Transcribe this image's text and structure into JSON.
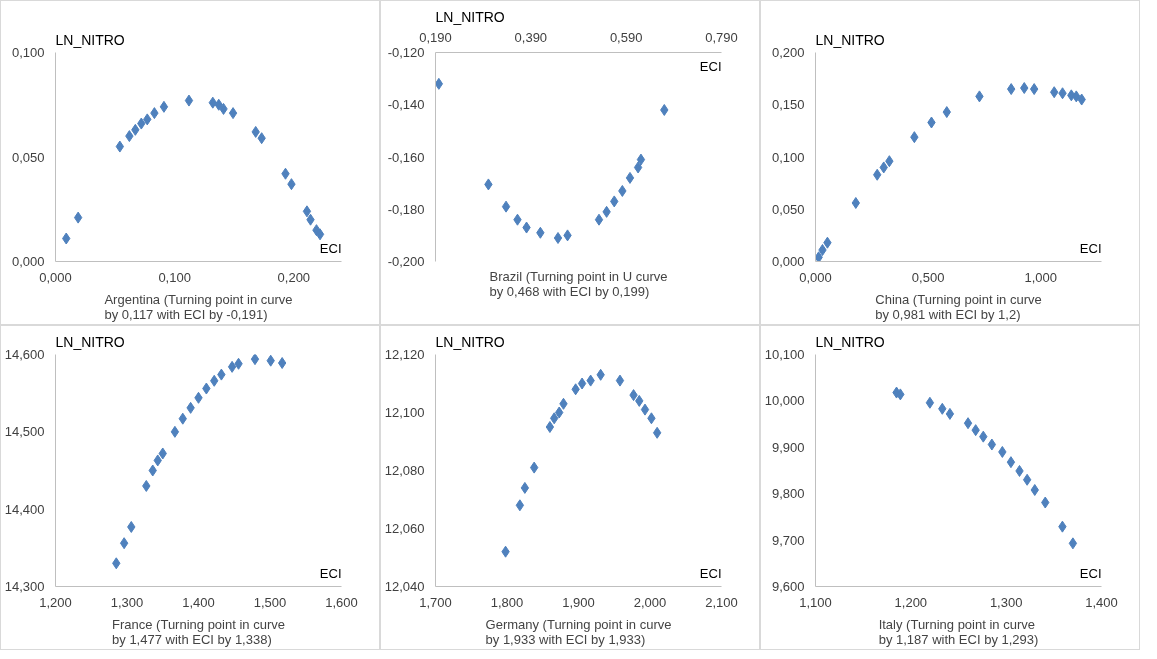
{
  "chart_data": [
    {
      "type": "scatter",
      "marker": "diamond",
      "grid": false,
      "ylabel": "LN_NITRO",
      "xlabel": "ECI",
      "annotations": [
        "Argentina (Turning point in curve by 0,117 with ECI by -0,191)"
      ],
      "xlim": [
        0,
        0.24
      ],
      "ylim": [
        0,
        0.1
      ],
      "xticks": [
        {
          "value": 0,
          "label": "0,000"
        },
        {
          "value": 0.1,
          "label": "0,100"
        },
        {
          "value": 0.2,
          "label": "0,200"
        }
      ],
      "yticks": [
        {
          "value": 0,
          "label": "0,000"
        },
        {
          "value": 0.05,
          "label": "0,050"
        },
        {
          "value": 0.1,
          "label": "0,100"
        }
      ],
      "series": [
        {
          "color": "#4f81bd",
          "x": [
            0.009,
            0.019,
            0.054,
            0.062,
            0.067,
            0.072,
            0.077,
            0.083,
            0.091,
            0.112,
            0.132,
            0.137,
            0.141,
            0.149,
            0.168,
            0.173,
            0.193,
            0.198,
            0.211,
            0.214,
            0.219,
            0.222
          ],
          "values": [
            0.011,
            0.021,
            0.055,
            0.06,
            0.063,
            0.066,
            0.068,
            0.071,
            0.074,
            0.077,
            0.076,
            0.075,
            0.073,
            0.071,
            0.062,
            0.059,
            0.042,
            0.037,
            0.024,
            0.02,
            0.015,
            0.013
          ]
        }
      ]
    },
    {
      "type": "scatter",
      "marker": "diamond",
      "grid": false,
      "ylabel": "LN_NITRO",
      "xlabel": "ECI",
      "annotations": [
        "Brazil (Turning point in U curve by 0,468 with ECI by 0,199)"
      ],
      "xlim": [
        0.19,
        0.79
      ],
      "ylim": [
        -0.2,
        -0.12
      ],
      "xticks": [
        {
          "value": 0.19,
          "label": "0,190"
        },
        {
          "value": 0.39,
          "label": "0,390"
        },
        {
          "value": 0.59,
          "label": "0,590"
        },
        {
          "value": 0.79,
          "label": "0,790"
        }
      ],
      "yticks": [
        {
          "value": -0.2,
          "label": "-0,200"
        },
        {
          "value": -0.18,
          "label": "-0,180"
        },
        {
          "value": -0.16,
          "label": "-0,160"
        },
        {
          "value": -0.14,
          "label": "-0,140"
        },
        {
          "value": -0.12,
          "label": "-0,120"
        }
      ],
      "series": [
        {
          "color": "#4f81bd",
          "x": [
            0.197,
            0.301,
            0.338,
            0.362,
            0.381,
            0.41,
            0.447,
            0.467,
            0.533,
            0.549,
            0.565,
            0.582,
            0.598,
            0.615,
            0.621,
            0.67
          ],
          "values": [
            -0.132,
            -0.1705,
            -0.179,
            -0.184,
            -0.187,
            -0.189,
            -0.191,
            -0.19,
            -0.184,
            -0.181,
            -0.177,
            -0.173,
            -0.168,
            -0.164,
            -0.161,
            -0.142
          ]
        }
      ]
    },
    {
      "type": "scatter",
      "marker": "diamond",
      "grid": false,
      "ylabel": "LN_NITRO",
      "xlabel": "ECI",
      "annotations": [
        "China (Turning point in curve by 0,981 with ECI by 1,2)"
      ],
      "xlim": [
        0,
        1.27
      ],
      "ylim": [
        0,
        0.2
      ],
      "xticks": [
        {
          "value": 0,
          "label": "0,000"
        },
        {
          "value": 0.5,
          "label": "0,500"
        },
        {
          "value": 1,
          "label": "1,000"
        }
      ],
      "yticks": [
        {
          "value": 0,
          "label": "0,000"
        },
        {
          "value": 0.05,
          "label": "0,050"
        },
        {
          "value": 0.1,
          "label": "0,100"
        },
        {
          "value": 0.15,
          "label": "0,150"
        },
        {
          "value": 0.2,
          "label": "0,200"
        }
      ],
      "series": [
        {
          "color": "#4f81bd",
          "x": [
            0.014,
            0.031,
            0.053,
            0.179,
            0.274,
            0.303,
            0.328,
            0.439,
            0.515,
            0.583,
            0.728,
            0.869,
            0.927,
            0.971,
            1.06,
            1.097,
            1.136,
            1.158,
            1.182
          ],
          "values": [
            0.004,
            0.011,
            0.018,
            0.056,
            0.083,
            0.09,
            0.096,
            0.119,
            0.133,
            0.143,
            0.158,
            0.165,
            0.166,
            0.165,
            0.162,
            0.161,
            0.159,
            0.158,
            0.155
          ]
        }
      ]
    },
    {
      "type": "scatter",
      "marker": "diamond",
      "grid": false,
      "ylabel": "LN_NITRO",
      "xlabel": "ECI",
      "annotations": [
        "France (Turning point in curve by 1,477 with ECI by 1,338)"
      ],
      "xlim": [
        1.2,
        1.6
      ],
      "ylim": [
        14.3,
        14.6
      ],
      "xticks": [
        {
          "value": 1.2,
          "label": "1,200"
        },
        {
          "value": 1.3,
          "label": "1,300"
        },
        {
          "value": 1.4,
          "label": "1,400"
        },
        {
          "value": 1.5,
          "label": "1,500"
        },
        {
          "value": 1.6,
          "label": "1,600"
        }
      ],
      "yticks": [
        {
          "value": 14.3,
          "label": "14,300"
        },
        {
          "value": 14.4,
          "label": "14,400"
        },
        {
          "value": 14.5,
          "label": "14,500"
        },
        {
          "value": 14.6,
          "label": "14,600"
        }
      ],
      "series": [
        {
          "color": "#4f81bd",
          "x": [
            1.285,
            1.296,
            1.306,
            1.327,
            1.336,
            1.343,
            1.35,
            1.367,
            1.378,
            1.389,
            1.4,
            1.411,
            1.422,
            1.432,
            1.447,
            1.456,
            1.479,
            1.501,
            1.517
          ],
          "values": [
            14.33,
            14.356,
            14.377,
            14.43,
            14.45,
            14.463,
            14.472,
            14.5,
            14.517,
            14.531,
            14.544,
            14.556,
            14.566,
            14.574,
            14.584,
            14.588,
            14.594,
            14.592,
            14.589
          ]
        }
      ]
    },
    {
      "type": "scatter",
      "marker": "diamond",
      "grid": false,
      "ylabel": "LN_NITRO",
      "xlabel": "ECI",
      "annotations": [
        "Germany (Turning point in curve by 1,933 with ECI by 1,933)"
      ],
      "xlim": [
        1.7,
        2.1
      ],
      "ylim": [
        12.04,
        12.12
      ],
      "xticks": [
        {
          "value": 1.7,
          "label": "1,700"
        },
        {
          "value": 1.8,
          "label": "1,800"
        },
        {
          "value": 1.9,
          "label": "1,900"
        },
        {
          "value": 2.0,
          "label": "2,000"
        },
        {
          "value": 2.1,
          "label": "2,100"
        }
      ],
      "yticks": [
        {
          "value": 12.04,
          "label": "12,040"
        },
        {
          "value": 12.06,
          "label": "12,060"
        },
        {
          "value": 12.08,
          "label": "12,080"
        },
        {
          "value": 12.1,
          "label": "12,100"
        },
        {
          "value": 12.12,
          "label": "12,120"
        }
      ],
      "series": [
        {
          "color": "#4f81bd",
          "x": [
            1.798,
            1.818,
            1.825,
            1.838,
            1.86,
            1.866,
            1.873,
            1.879,
            1.896,
            1.905,
            1.917,
            1.931,
            1.958,
            1.977,
            1.985,
            1.993,
            2.002,
            2.01
          ],
          "values": [
            12.052,
            12.068,
            12.074,
            12.081,
            12.095,
            12.098,
            12.1,
            12.103,
            12.108,
            12.11,
            12.111,
            12.113,
            12.111,
            12.106,
            12.104,
            12.101,
            12.098,
            12.093
          ]
        }
      ]
    },
    {
      "type": "scatter",
      "marker": "diamond",
      "grid": false,
      "ylabel": "LN_NITRO",
      "xlabel": "ECI",
      "annotations": [
        "Italy (Turning point in curve by 1,187 with ECI by 1,293)"
      ],
      "xlim": [
        1.1,
        1.4
      ],
      "ylim": [
        9.6,
        10.1
      ],
      "xticks": [
        {
          "value": 1.1,
          "label": "1,100"
        },
        {
          "value": 1.2,
          "label": "1,200"
        },
        {
          "value": 1.3,
          "label": "1,300"
        },
        {
          "value": 1.4,
          "label": "1,400"
        }
      ],
      "yticks": [
        {
          "value": 9.6,
          "label": "9,600"
        },
        {
          "value": 9.7,
          "label": "9,700"
        },
        {
          "value": 9.8,
          "label": "9,800"
        },
        {
          "value": 9.9,
          "label": "9,900"
        },
        {
          "value": 10.0,
          "label": "10,000"
        },
        {
          "value": 10.1,
          "label": "10,100"
        }
      ],
      "series": [
        {
          "color": "#4f81bd",
          "x": [
            1.185,
            1.189,
            1.22,
            1.233,
            1.241,
            1.26,
            1.268,
            1.276,
            1.285,
            1.296,
            1.305,
            1.314,
            1.322,
            1.33,
            1.341,
            1.359,
            1.37
          ],
          "values": [
            10.018,
            10.014,
            9.996,
            9.983,
            9.972,
            9.952,
            9.937,
            9.923,
            9.906,
            9.89,
            9.868,
            9.849,
            9.83,
            9.808,
            9.781,
            9.729,
            9.693
          ]
        }
      ]
    }
  ]
}
